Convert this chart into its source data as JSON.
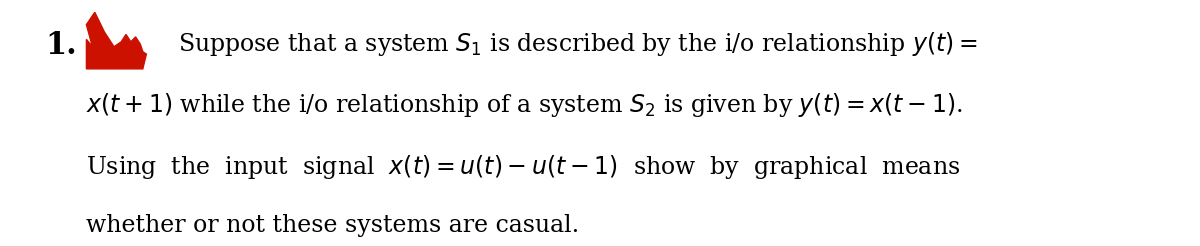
{
  "background_color": "#ffffff",
  "fig_width": 12.0,
  "fig_height": 2.46,
  "dpi": 100,
  "number_text": "1.",
  "number_fontsize": 22,
  "number_fontweight": "bold",
  "thumb_color": "#cc1100",
  "line1_text": "Suppose that a system $S_1$ is described by the i/o relationship $y(t) =$",
  "line2_text": "$x(t + 1)$ while the i/o relationship of a system $S_2$ is given by $y(t) = x(t - 1)$.",
  "line3_text": "Using  the  input  signal  $x(t) = u(t) - u(t - 1)$  show  by  graphical  means",
  "line4_text": "whether or not these systems are casual.",
  "fontsize": 17.0,
  "font_color": "#000000"
}
